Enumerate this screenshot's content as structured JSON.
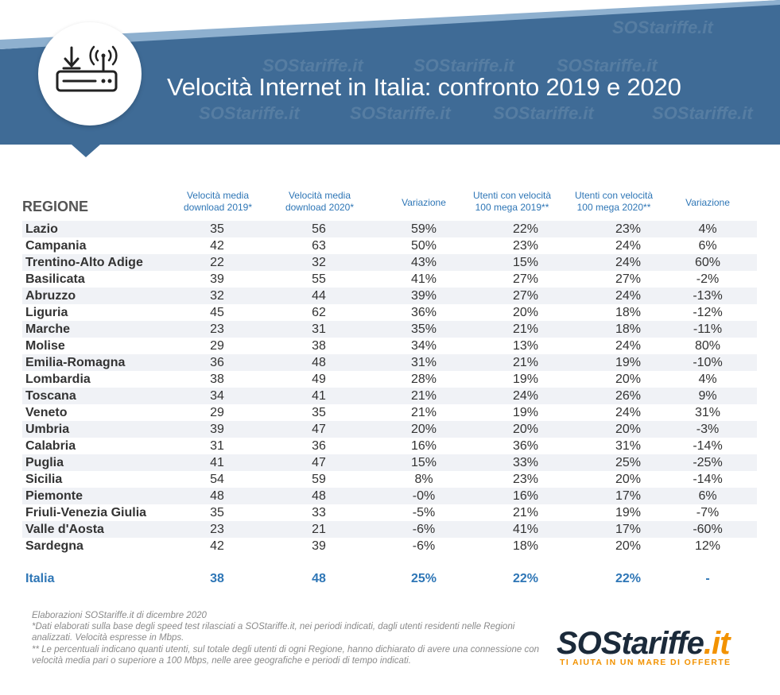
{
  "header": {
    "title": "Velocità Internet in Italia: confronto 2019 e 2020",
    "colors": {
      "band": "#3f6b96",
      "accent": "#8eb0cf",
      "brand_blue": "#2e76b6"
    },
    "watermark": "SOStariffe.it"
  },
  "table": {
    "headers": {
      "region": "REGIONE",
      "speed2019": "Velocità media download 2019*",
      "speed2020": "Velocità media download 2020*",
      "variation1": "Variazione",
      "users2019": "Utenti con velocità 100 mega 2019**",
      "users2020": "Utenti con velocità 100 mega 2020**",
      "variation2": "Variazione"
    },
    "rows": [
      {
        "region": "Lazio",
        "s2019": "35",
        "s2020": "56",
        "v1": "59%",
        "u2019": "22%",
        "u2020": "23%",
        "v2": "4%"
      },
      {
        "region": "Campania",
        "s2019": "42",
        "s2020": "63",
        "v1": "50%",
        "u2019": "23%",
        "u2020": "24%",
        "v2": "6%"
      },
      {
        "region": "Trentino-Alto Adige",
        "s2019": "22",
        "s2020": "32",
        "v1": "43%",
        "u2019": "15%",
        "u2020": "24%",
        "v2": "60%"
      },
      {
        "region": "Basilicata",
        "s2019": "39",
        "s2020": "55",
        "v1": "41%",
        "u2019": "27%",
        "u2020": "27%",
        "v2": "-2%"
      },
      {
        "region": "Abruzzo",
        "s2019": "32",
        "s2020": "44",
        "v1": "39%",
        "u2019": "27%",
        "u2020": "24%",
        "v2": "-13%"
      },
      {
        "region": "Liguria",
        "s2019": "45",
        "s2020": "62",
        "v1": "36%",
        "u2019": "20%",
        "u2020": "18%",
        "v2": "-12%"
      },
      {
        "region": "Marche",
        "s2019": "23",
        "s2020": "31",
        "v1": "35%",
        "u2019": "21%",
        "u2020": "18%",
        "v2": "-11%"
      },
      {
        "region": "Molise",
        "s2019": "29",
        "s2020": "38",
        "v1": "34%",
        "u2019": "13%",
        "u2020": "24%",
        "v2": "80%"
      },
      {
        "region": "Emilia-Romagna",
        "s2019": "36",
        "s2020": "48",
        "v1": "31%",
        "u2019": "21%",
        "u2020": "19%",
        "v2": "-10%"
      },
      {
        "region": "Lombardia",
        "s2019": "38",
        "s2020": "49",
        "v1": "28%",
        "u2019": "19%",
        "u2020": "20%",
        "v2": "4%"
      },
      {
        "region": "Toscana",
        "s2019": "34",
        "s2020": "41",
        "v1": "21%",
        "u2019": "24%",
        "u2020": "26%",
        "v2": "9%"
      },
      {
        "region": "Veneto",
        "s2019": "29",
        "s2020": "35",
        "v1": "21%",
        "u2019": "19%",
        "u2020": "24%",
        "v2": "31%"
      },
      {
        "region": "Umbria",
        "s2019": "39",
        "s2020": "47",
        "v1": "20%",
        "u2019": "20%",
        "u2020": "20%",
        "v2": "-3%"
      },
      {
        "region": "Calabria",
        "s2019": "31",
        "s2020": "36",
        "v1": "16%",
        "u2019": "36%",
        "u2020": "31%",
        "v2": "-14%"
      },
      {
        "region": "Puglia",
        "s2019": "41",
        "s2020": "47",
        "v1": "15%",
        "u2019": "33%",
        "u2020": "25%",
        "v2": "-25%"
      },
      {
        "region": "Sicilia",
        "s2019": "54",
        "s2020": "59",
        "v1": "8%",
        "u2019": "23%",
        "u2020": "20%",
        "v2": "-14%"
      },
      {
        "region": "Piemonte",
        "s2019": "48",
        "s2020": "48",
        "v1": "-0%",
        "u2019": "16%",
        "u2020": "17%",
        "v2": "6%"
      },
      {
        "region": "Friuli-Venezia Giulia",
        "s2019": "35",
        "s2020": "33",
        "v1": "-5%",
        "u2019": "21%",
        "u2020": "19%",
        "v2": "-7%"
      },
      {
        "region": "Valle d'Aosta",
        "s2019": "23",
        "s2020": "21",
        "v1": "-6%",
        "u2019": "41%",
        "u2020": "17%",
        "v2": "-60%"
      },
      {
        "region": "Sardegna",
        "s2019": "42",
        "s2020": "39",
        "v1": "-6%",
        "u2019": "18%",
        "u2020": "20%",
        "v2": "12%"
      }
    ],
    "total": {
      "region": "Italia",
      "s2019": "38",
      "s2020": "48",
      "v1": "25%",
      "u2019": "22%",
      "u2020": "22%",
      "v2": "-"
    }
  },
  "notes": {
    "line1": "Elaborazioni SOStariffe.it di dicembre 2020",
    "line2": "*Dati elaborati sulla base degli speed test rilasciati a SOStariffe.it, nei periodi indicati, dagli utenti residenti nelle Regioni analizzati. Velocità espresse in Mbps.",
    "line3": "** Le percentuali indicano quanti utenti, sul totale degli utenti di ogni Regione, hanno dichiarato di avere una connessione con velocità media pari o superiore a 100 Mbps, nelle aree geografiche e periodi di tempo indicati."
  },
  "logo": {
    "sos": "SOS",
    "tariffe": "tariffe",
    "it": ".it",
    "tagline": "TI AIUTA IN UN MARE DI OFFERTE"
  },
  "icons": {
    "header": "router-wifi-download-icon"
  },
  "chart_data": {
    "type": "table",
    "title": "Velocità Internet in Italia: confronto 2019 e 2020",
    "columns": [
      "REGIONE",
      "Velocità media download 2019*",
      "Velocità media download 2020*",
      "Variazione",
      "Utenti con velocità 100 mega 2019**",
      "Utenti con velocità 100 mega 2020**",
      "Variazione"
    ],
    "rows": [
      [
        "Lazio",
        35,
        56,
        "59%",
        "22%",
        "23%",
        "4%"
      ],
      [
        "Campania",
        42,
        63,
        "50%",
        "23%",
        "24%",
        "6%"
      ],
      [
        "Trentino-Alto Adige",
        22,
        32,
        "43%",
        "15%",
        "24%",
        "60%"
      ],
      [
        "Basilicata",
        39,
        55,
        "41%",
        "27%",
        "27%",
        "-2%"
      ],
      [
        "Abruzzo",
        32,
        44,
        "39%",
        "27%",
        "24%",
        "-13%"
      ],
      [
        "Liguria",
        45,
        62,
        "36%",
        "20%",
        "18%",
        "-12%"
      ],
      [
        "Marche",
        23,
        31,
        "35%",
        "21%",
        "18%",
        "-11%"
      ],
      [
        "Molise",
        29,
        38,
        "34%",
        "13%",
        "24%",
        "80%"
      ],
      [
        "Emilia-Romagna",
        36,
        48,
        "31%",
        "21%",
        "19%",
        "-10%"
      ],
      [
        "Lombardia",
        38,
        49,
        "28%",
        "19%",
        "20%",
        "4%"
      ],
      [
        "Toscana",
        34,
        41,
        "21%",
        "24%",
        "26%",
        "9%"
      ],
      [
        "Veneto",
        29,
        35,
        "21%",
        "19%",
        "24%",
        "31%"
      ],
      [
        "Umbria",
        39,
        47,
        "20%",
        "20%",
        "20%",
        "-3%"
      ],
      [
        "Calabria",
        31,
        36,
        "16%",
        "36%",
        "31%",
        "-14%"
      ],
      [
        "Puglia",
        41,
        47,
        "15%",
        "33%",
        "25%",
        "-25%"
      ],
      [
        "Sicilia",
        54,
        59,
        "8%",
        "23%",
        "20%",
        "-14%"
      ],
      [
        "Piemonte",
        48,
        48,
        "-0%",
        "16%",
        "17%",
        "6%"
      ],
      [
        "Friuli-Venezia Giulia",
        35,
        33,
        "-5%",
        "21%",
        "19%",
        "-7%"
      ],
      [
        "Valle d'Aosta",
        23,
        21,
        "-6%",
        "41%",
        "17%",
        "-60%"
      ],
      [
        "Sardegna",
        42,
        39,
        "-6%",
        "18%",
        "20%",
        "12%"
      ],
      [
        "Italia",
        38,
        48,
        "25%",
        "22%",
        "22%",
        "-"
      ]
    ]
  }
}
